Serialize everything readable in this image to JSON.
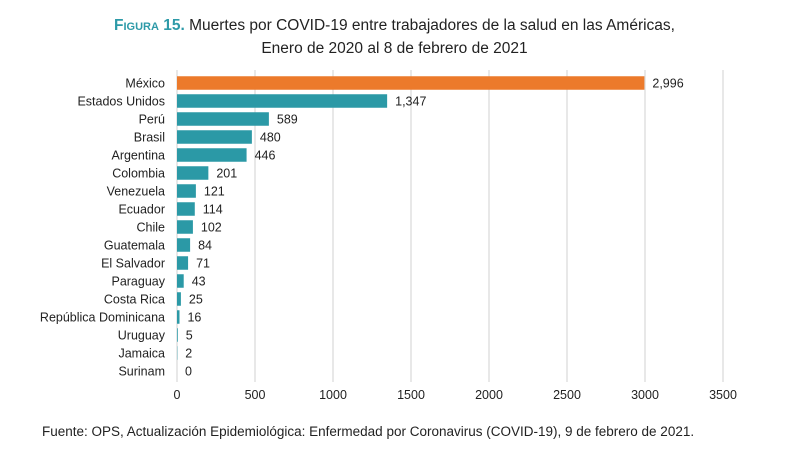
{
  "title": {
    "figure_label": "Figura 15.",
    "line1": " Muertes por COVID-19 entre trabajadores de la salud en las Américas,",
    "line2": "Enero de 2020 al 8 de febrero de 2021"
  },
  "source": "Fuente: OPS, Actualización Epidemiológica: Enfermedad por Coronavirus (COVID-19), 9 de febrero de 2021.",
  "colors": {
    "highlight": "#ec7a2b",
    "bar": "#2b99a6",
    "grid": "#d0d0d0",
    "title_accent": "#2d9aa8"
  },
  "chart_data": {
    "type": "bar",
    "orientation": "horizontal",
    "categories": [
      "México",
      "Estados Unidos",
      "Perú",
      "Brasil",
      "Argentina",
      "Colombia",
      "Venezuela",
      "Ecuador",
      "Chile",
      "Guatemala",
      "El Salvador",
      "Paraguay",
      "Costa Rica",
      "República Dominicana",
      "Uruguay",
      "Jamaica",
      "Surinam"
    ],
    "values": [
      2996,
      1347,
      589,
      480,
      446,
      201,
      121,
      114,
      102,
      84,
      71,
      43,
      25,
      16,
      5,
      2,
      0
    ],
    "value_labels": [
      "2,996",
      "1,347",
      "589",
      "480",
      "446",
      "201",
      "121",
      "114",
      "102",
      "84",
      "71",
      "43",
      "25",
      "16",
      "5",
      "2",
      "0"
    ],
    "highlight_index": 0,
    "xlim": [
      0,
      3500
    ],
    "xticks": [
      0,
      500,
      1000,
      1500,
      2000,
      2500,
      3000,
      3500
    ],
    "grid": "vertical",
    "legend": "none"
  }
}
